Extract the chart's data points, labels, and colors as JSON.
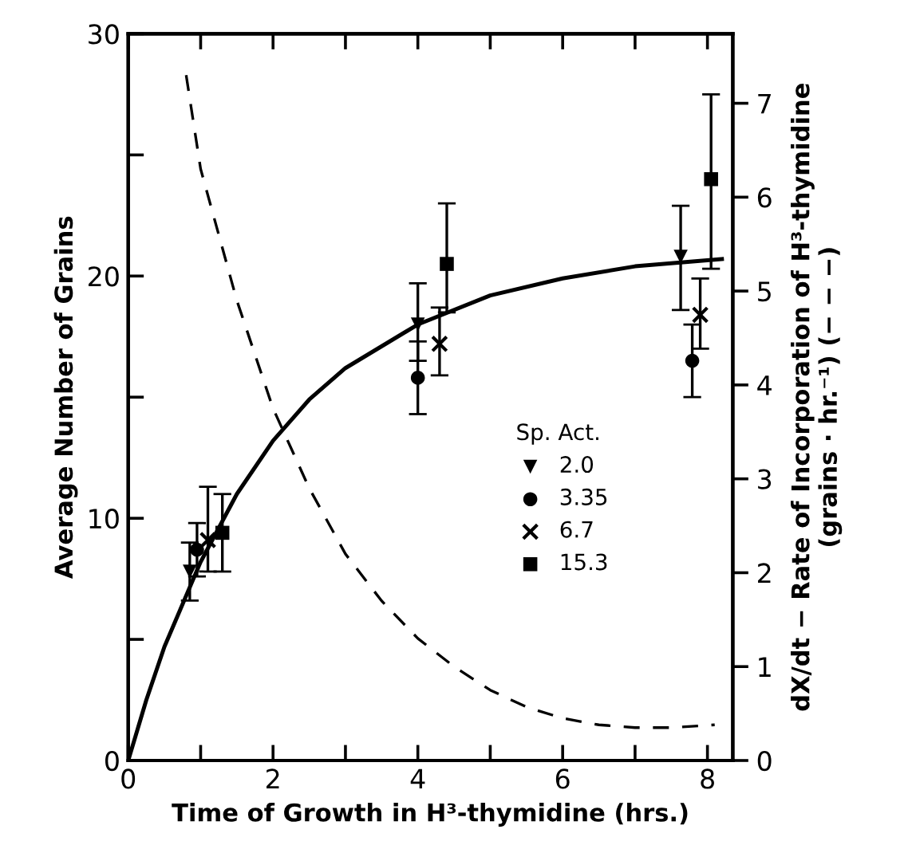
{
  "chart_data": {
    "type": "scatter",
    "xlabel": "Time of Growth in H³-thymidine (hrs.)",
    "ylabel": "Average Number of Grains",
    "y2label": "dX/dt − Rate of Incorporation of H³-thymidine\n(grains · hr.⁻¹) (− − −)",
    "legend_title": "Sp. Act.",
    "legend": "right",
    "grid": false,
    "xlim": [
      0,
      8.35
    ],
    "xticks": [
      0,
      {
        "value": 1,
        "label": null
      },
      2,
      {
        "value": 3,
        "label": null
      },
      4,
      {
        "value": 5,
        "label": null
      },
      6,
      {
        "value": 7,
        "label": null
      },
      8
    ],
    "ylim": [
      0,
      30
    ],
    "yticks": [
      0,
      {
        "value": 5,
        "label": null
      },
      10,
      {
        "value": 15,
        "label": null
      },
      20,
      {
        "value": 25,
        "label": null
      },
      30
    ],
    "y2lim": [
      0,
      7.74
    ],
    "y2ticks": [
      0,
      1,
      2,
      3,
      4,
      5,
      6,
      7
    ],
    "series": [
      {
        "name": "2.0",
        "marker": "triangle",
        "color": "#000000",
        "x": [
          0.85,
          4.0,
          7.63
        ],
        "values": [
          7.8,
          18.0,
          20.8
        ],
        "errors": [
          [
            6.6,
            9.0
          ],
          [
            16.5,
            19.7
          ],
          [
            18.6,
            22.9
          ]
        ]
      },
      {
        "name": "3.35",
        "marker": "circle",
        "color": "#000000",
        "x": [
          0.95,
          4.0,
          7.79
        ],
        "values": [
          8.7,
          15.8,
          16.5
        ],
        "errors": [
          [
            7.6,
            9.8
          ],
          [
            14.3,
            17.3
          ],
          [
            15.0,
            18.0
          ]
        ]
      },
      {
        "name": "6.7",
        "marker": "cross",
        "color": "#000000",
        "x": [
          1.1,
          4.3,
          7.9
        ],
        "values": [
          9.1,
          17.2,
          18.4
        ],
        "errors": [
          [
            7.8,
            11.3
          ],
          [
            15.9,
            18.7
          ],
          [
            17.0,
            19.9
          ]
        ]
      },
      {
        "name": "15.3",
        "marker": "square",
        "color": "#000000",
        "x": [
          1.3,
          4.4,
          8.05
        ],
        "values": [
          9.4,
          20.5,
          24.0
        ],
        "errors": [
          [
            7.8,
            11.0
          ],
          [
            18.5,
            23.0
          ],
          [
            20.3,
            27.5
          ]
        ]
      },
      {
        "type": "line",
        "marker": "none",
        "line_style": "solid",
        "color": "#000000",
        "x": [
          0,
          0.25,
          0.5,
          1,
          1.5,
          2,
          2.5,
          3,
          4,
          5,
          6,
          7,
          8.2
        ],
        "values": [
          0,
          2.5,
          4.7,
          8.2,
          11.0,
          13.2,
          14.9,
          16.2,
          18.0,
          19.2,
          19.9,
          20.4,
          20.7
        ]
      },
      {
        "type": "line",
        "axis": "y2",
        "marker": "none",
        "line_style": "dashed",
        "color": "#000000",
        "x": [
          0.8,
          1,
          1.5,
          2,
          2.5,
          3,
          3.5,
          4,
          4.5,
          5,
          5.5,
          6,
          6.5,
          7,
          7.5,
          8.1
        ],
        "values": [
          7.3,
          6.3,
          4.9,
          3.75,
          2.9,
          2.2,
          1.7,
          1.3,
          1.0,
          0.75,
          0.57,
          0.45,
          0.38,
          0.35,
          0.35,
          0.38
        ]
      }
    ]
  }
}
